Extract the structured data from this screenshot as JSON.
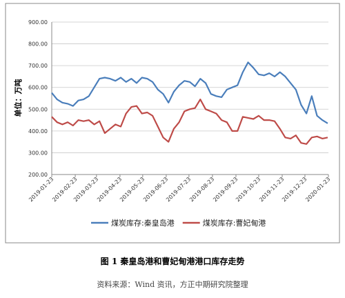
{
  "chart_data": {
    "type": "line",
    "y_label": "单位：万吨",
    "legend": "bottom",
    "grid": true,
    "x": [
      "2019-01-23",
      "2019-01-30",
      "2019-02-06",
      "2019-02-13",
      "2019-02-20",
      "2019-02-27",
      "2019-03-06",
      "2019-03-13",
      "2019-03-20",
      "2019-03-27",
      "2019-04-03",
      "2019-04-10",
      "2019-04-17",
      "2019-04-24",
      "2019-05-01",
      "2019-05-08",
      "2019-05-15",
      "2019-05-22",
      "2019-05-29",
      "2019-06-05",
      "2019-06-12",
      "2019-06-19",
      "2019-06-26",
      "2019-07-03",
      "2019-07-10",
      "2019-07-17",
      "2019-07-24",
      "2019-07-31",
      "2019-08-07",
      "2019-08-14",
      "2019-08-21",
      "2019-08-28",
      "2019-09-04",
      "2019-09-11",
      "2019-09-18",
      "2019-09-25",
      "2019-10-02",
      "2019-10-09",
      "2019-10-16",
      "2019-10-23",
      "2019-10-30",
      "2019-11-06",
      "2019-11-13",
      "2019-11-20",
      "2019-11-27",
      "2019-12-04",
      "2019-12-11",
      "2019-12-18",
      "2019-12-25",
      "2020-01-01",
      "2020-01-08",
      "2020-01-15",
      "2020-01-22"
    ],
    "series": [
      {
        "name": "煤炭库存:秦皇岛港",
        "color": "#4a7ebb",
        "values": [
          575,
          545,
          530,
          525,
          515,
          540,
          545,
          560,
          600,
          640,
          645,
          640,
          630,
          645,
          625,
          640,
          620,
          645,
          640,
          625,
          590,
          570,
          530,
          580,
          610,
          630,
          625,
          605,
          640,
          620,
          570,
          560,
          555,
          590,
          600,
          610,
          670,
          715,
          690,
          660,
          655,
          665,
          650,
          670,
          650,
          620,
          590,
          520,
          480,
          560,
          470,
          450,
          435
        ]
      },
      {
        "name": "煤炭库存:曹妃甸港",
        "color": "#be4b48",
        "values": [
          465,
          440,
          430,
          440,
          425,
          450,
          445,
          450,
          430,
          445,
          390,
          410,
          430,
          420,
          480,
          510,
          515,
          480,
          485,
          470,
          420,
          370,
          350,
          410,
          440,
          490,
          500,
          505,
          545,
          500,
          490,
          480,
          450,
          440,
          400,
          400,
          465,
          460,
          455,
          470,
          450,
          450,
          445,
          410,
          370,
          365,
          380,
          345,
          340,
          370,
          375,
          365,
          370
        ]
      }
    ],
    "xlim": [
      "2019-01-23",
      "2020-01-23"
    ],
    "xticks": [
      "2019-01-23",
      "2019-02-23",
      "2019-03-23",
      "2019-04-23",
      "2019-05-23",
      "2019-06-23",
      "2019-07-23",
      "2019-08-23",
      "2019-09-23",
      "2019-10-23",
      "2019-11-23",
      "2019-12-23",
      "2020-01-23"
    ],
    "ylim": [
      200,
      900
    ],
    "yticks": [
      {
        "value": 200,
        "label": "200.00"
      },
      {
        "value": 300,
        "label": "300.00"
      },
      {
        "value": 400,
        "label": "400.00"
      },
      {
        "value": 500,
        "label": "500.00"
      },
      {
        "value": 600,
        "label": "600.00"
      },
      {
        "value": 700,
        "label": "700.00"
      },
      {
        "value": 800,
        "label": "800.00"
      },
      {
        "value": 900,
        "label": "900.00"
      }
    ]
  },
  "caption": "图 1  秦皇岛港和曹妃甸港港口库存走势",
  "source": "资料来源：Wind 资讯，方正中期研究院整理"
}
